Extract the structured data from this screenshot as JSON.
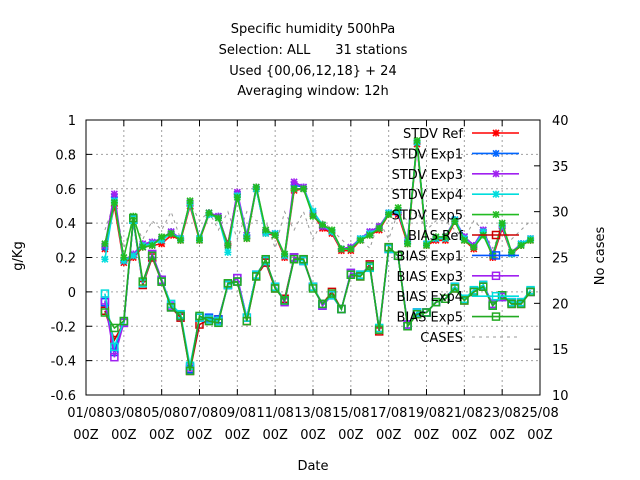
{
  "chart_data": {
    "type": "line",
    "title_lines": [
      "Specific humidity 500hPa",
      "Selection: ALL      31 stations",
      "Used {00,06,12,18} + 24",
      "Averaging window: 12h"
    ],
    "xlabel": "Date",
    "ylabel": "g/Kg",
    "y2label": "No cases",
    "ylim": [
      -0.6,
      1.0
    ],
    "y2lim": [
      10,
      40
    ],
    "y_ticks": [
      "1",
      "0.8",
      "0.6",
      "0.4",
      "0.2",
      "0",
      "-0.2",
      "-0.4",
      "-0.6"
    ],
    "y2_ticks": [
      "40",
      "35",
      "30",
      "25",
      "20",
      "15",
      "10"
    ],
    "x_ticks": [
      {
        "day": 1,
        "line1": "01/08",
        "line2": "00Z"
      },
      {
        "day": 3,
        "line1": "03/08",
        "line2": "00Z"
      },
      {
        "day": 5,
        "line1": "05/08",
        "line2": "00Z"
      },
      {
        "day": 7,
        "line1": "07/08",
        "line2": "00Z"
      },
      {
        "day": 9,
        "line1": "09/08",
        "line2": "00Z"
      },
      {
        "day": 11,
        "line1": "11/08",
        "line2": "00Z"
      },
      {
        "day": 13,
        "line1": "13/08",
        "line2": "00Z"
      },
      {
        "day": 15,
        "line1": "15/08",
        "line2": "00Z"
      },
      {
        "day": 17,
        "line1": "17/08",
        "line2": "00Z"
      },
      {
        "day": 19,
        "line1": "19/08",
        "line2": "00Z"
      },
      {
        "day": 21,
        "line1": "21/08",
        "line2": "00Z"
      },
      {
        "day": 23,
        "line1": "23/08",
        "line2": "00Z"
      },
      {
        "day": 25,
        "line1": "25/08",
        "line2": "00Z"
      }
    ],
    "xlim": [
      1,
      25
    ],
    "grid": true,
    "legend_position": "top-right",
    "x_days": [
      2.0,
      2.5,
      3.0,
      3.5,
      4.0,
      4.5,
      5.0,
      5.5,
      6.0,
      6.5,
      7.0,
      7.5,
      8.0,
      8.5,
      9.0,
      9.5,
      10.0,
      10.5,
      11.0,
      11.5,
      12.0,
      12.5,
      13.0,
      13.5,
      14.0,
      14.5,
      15.0,
      15.5,
      16.0,
      16.5,
      17.0,
      17.5,
      18.0,
      18.5,
      19.0,
      19.5,
      20.0,
      20.5,
      21.0,
      21.5,
      22.0,
      22.5,
      23.0,
      23.5,
      24.0,
      24.5
    ],
    "series": [
      {
        "name": "STDV Ref",
        "color": "#ff0000",
        "marker": "star",
        "axis": "y",
        "values": [
          0.25,
          0.5,
          0.17,
          0.2,
          0.26,
          0.27,
          0.28,
          0.33,
          0.3,
          0.5,
          0.3,
          0.45,
          0.43,
          0.28,
          0.57,
          0.31,
          0.6,
          0.34,
          0.33,
          0.2,
          0.59,
          0.6,
          0.45,
          0.37,
          0.34,
          0.24,
          0.24,
          0.3,
          0.33,
          0.36,
          0.45,
          0.45,
          0.28,
          0.86,
          0.27,
          0.3,
          0.3,
          0.41,
          0.3,
          0.25,
          0.35,
          0.2,
          0.37,
          0.22,
          0.27,
          0.3
        ]
      },
      {
        "name": "STDV Exp1",
        "color": "#0066ff",
        "marker": "star",
        "axis": "y",
        "values": [
          0.26,
          0.55,
          0.18,
          0.22,
          0.27,
          0.29,
          0.31,
          0.35,
          0.31,
          0.52,
          0.31,
          0.46,
          0.44,
          0.27,
          0.57,
          0.33,
          0.6,
          0.35,
          0.34,
          0.21,
          0.62,
          0.61,
          0.46,
          0.38,
          0.35,
          0.25,
          0.26,
          0.31,
          0.35,
          0.38,
          0.46,
          0.46,
          0.3,
          0.87,
          0.28,
          0.31,
          0.32,
          0.42,
          0.32,
          0.27,
          0.36,
          0.22,
          0.38,
          0.23,
          0.28,
          0.31
        ]
      },
      {
        "name": "STDV Exp3",
        "color": "#a020f0",
        "marker": "star",
        "axis": "y",
        "values": [
          0.27,
          0.57,
          0.18,
          0.22,
          0.28,
          0.29,
          0.31,
          0.35,
          0.31,
          0.52,
          0.31,
          0.46,
          0.44,
          0.27,
          0.58,
          0.33,
          0.61,
          0.35,
          0.34,
          0.21,
          0.64,
          0.61,
          0.46,
          0.38,
          0.35,
          0.25,
          0.26,
          0.31,
          0.35,
          0.38,
          0.46,
          0.46,
          0.3,
          0.87,
          0.28,
          0.31,
          0.32,
          0.42,
          0.32,
          0.27,
          0.36,
          0.22,
          0.38,
          0.23,
          0.28,
          0.31
        ]
      },
      {
        "name": "STDV Exp4",
        "color": "#00dddd",
        "marker": "star",
        "axis": "y",
        "values": [
          0.19,
          0.53,
          0.18,
          0.21,
          0.27,
          0.28,
          0.3,
          0.34,
          0.31,
          0.51,
          0.31,
          0.45,
          0.43,
          0.23,
          0.56,
          0.32,
          0.6,
          0.34,
          0.34,
          0.21,
          0.6,
          0.6,
          0.47,
          0.39,
          0.35,
          0.25,
          0.25,
          0.31,
          0.34,
          0.37,
          0.46,
          0.47,
          0.29,
          0.87,
          0.28,
          0.31,
          0.31,
          0.42,
          0.31,
          0.26,
          0.35,
          0.21,
          0.39,
          0.22,
          0.28,
          0.31
        ]
      },
      {
        "name": "STDV Exp5",
        "color": "#22bb22",
        "marker": "star",
        "axis": "y",
        "values": [
          0.28,
          0.52,
          0.2,
          0.44,
          0.26,
          0.27,
          0.32,
          0.34,
          0.3,
          0.53,
          0.3,
          0.46,
          0.43,
          0.27,
          0.55,
          0.31,
          0.61,
          0.36,
          0.33,
          0.22,
          0.6,
          0.6,
          0.44,
          0.39,
          0.36,
          0.25,
          0.25,
          0.3,
          0.33,
          0.37,
          0.45,
          0.49,
          0.28,
          0.88,
          0.27,
          0.32,
          0.32,
          0.41,
          0.3,
          0.26,
          0.33,
          0.21,
          0.4,
          0.23,
          0.27,
          0.3
        ]
      },
      {
        "name": "BIAS Ref",
        "color": "#cc0000",
        "marker": "square",
        "axis": "y",
        "values": [
          -0.11,
          -0.28,
          -0.18,
          0.42,
          0.04,
          0.2,
          0.06,
          -0.09,
          -0.15,
          -0.46,
          -0.19,
          -0.16,
          -0.16,
          0.04,
          0.06,
          -0.17,
          0.09,
          0.17,
          0.02,
          -0.04,
          0.2,
          0.19,
          0.03,
          -0.07,
          0.0,
          -0.1,
          0.1,
          0.09,
          0.16,
          -0.23,
          0.26,
          0.21,
          -0.2,
          -0.13,
          -0.12,
          -0.06,
          -0.04,
          0.02,
          -0.05,
          0.0,
          0.03,
          -0.08,
          -0.02,
          -0.07,
          -0.07,
          0.0
        ]
      },
      {
        "name": "BIAS Exp1",
        "color": "#0055ff",
        "marker": "square",
        "axis": "y",
        "values": [
          -0.06,
          -0.35,
          -0.18,
          0.42,
          0.05,
          0.22,
          0.07,
          -0.09,
          -0.14,
          -0.45,
          -0.15,
          -0.15,
          -0.16,
          0.04,
          0.08,
          -0.15,
          0.1,
          0.18,
          0.03,
          -0.05,
          0.2,
          0.18,
          0.03,
          -0.08,
          -0.02,
          -0.1,
          0.11,
          0.1,
          0.15,
          -0.22,
          0.25,
          0.21,
          -0.19,
          -0.12,
          -0.12,
          -0.06,
          -0.04,
          0.03,
          -0.04,
          0.0,
          0.04,
          -0.07,
          -0.03,
          -0.06,
          -0.06,
          0.0
        ]
      },
      {
        "name": "BIAS Exp3",
        "color": "#a020f0",
        "marker": "square",
        "axis": "y",
        "values": [
          -0.05,
          -0.38,
          -0.18,
          0.42,
          0.05,
          0.22,
          0.07,
          -0.08,
          -0.14,
          -0.44,
          -0.15,
          -0.16,
          -0.17,
          0.04,
          0.08,
          -0.15,
          0.1,
          0.18,
          0.03,
          -0.06,
          0.2,
          0.18,
          0.03,
          -0.08,
          -0.02,
          -0.1,
          0.11,
          0.1,
          0.15,
          -0.22,
          0.25,
          0.21,
          -0.19,
          -0.12,
          -0.12,
          -0.06,
          -0.04,
          0.03,
          -0.04,
          0.0,
          0.04,
          -0.07,
          -0.03,
          -0.06,
          -0.06,
          0.0
        ]
      },
      {
        "name": "BIAS Exp4",
        "color": "#00dddd",
        "marker": "square",
        "axis": "y",
        "values": [
          -0.01,
          -0.32,
          -0.17,
          0.42,
          0.05,
          0.21,
          0.06,
          -0.07,
          -0.13,
          -0.43,
          -0.15,
          -0.16,
          -0.17,
          0.04,
          0.06,
          -0.15,
          0.1,
          0.18,
          0.03,
          -0.05,
          0.19,
          0.18,
          0.03,
          -0.07,
          -0.02,
          -0.1,
          0.1,
          0.1,
          0.14,
          -0.21,
          0.25,
          0.21,
          -0.2,
          -0.12,
          -0.12,
          -0.06,
          -0.04,
          0.03,
          -0.04,
          0.01,
          0.04,
          -0.08,
          -0.02,
          -0.06,
          -0.06,
          0.01
        ]
      },
      {
        "name": "BIAS Exp5",
        "color": "#22aa22",
        "marker": "square",
        "axis": "y",
        "values": [
          -0.12,
          -0.21,
          -0.17,
          0.43,
          0.06,
          0.21,
          0.06,
          -0.09,
          -0.14,
          -0.46,
          -0.14,
          -0.17,
          -0.18,
          0.05,
          0.06,
          -0.17,
          0.09,
          0.19,
          0.02,
          -0.05,
          0.19,
          0.19,
          0.02,
          -0.07,
          -0.01,
          -0.1,
          0.1,
          0.09,
          0.15,
          -0.22,
          0.26,
          0.21,
          -0.2,
          -0.13,
          -0.12,
          -0.06,
          -0.04,
          0.02,
          -0.05,
          0.0,
          0.03,
          -0.08,
          -0.02,
          -0.07,
          -0.07,
          0.0
        ]
      },
      {
        "name": "CASES",
        "color": "#999999",
        "marker": "none",
        "dashed": true,
        "axis": "y2",
        "values": [
          28,
          31,
          26,
          29,
          27,
          29,
          28,
          30,
          27,
          31,
          29,
          30,
          28,
          30,
          27,
          30,
          29,
          29,
          26,
          30,
          28,
          30,
          27,
          29,
          28,
          27,
          26,
          27,
          26,
          29,
          27,
          30,
          29,
          30,
          28,
          29,
          29,
          28,
          27,
          29,
          28,
          26,
          28,
          27,
          28,
          29
        ]
      }
    ]
  }
}
